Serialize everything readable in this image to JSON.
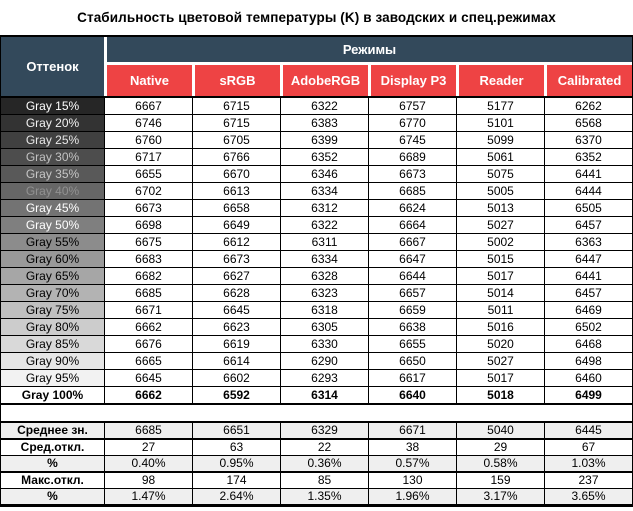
{
  "title": "Стабильность цветовой температуры (K) в заводских и спец.режимах",
  "colors": {
    "header_bg": "#33495B",
    "mode_header_bg": "#EE4344",
    "header_text": "#FFFFFF",
    "border": "#000000",
    "summary_alt_bg": "#EFEFEF"
  },
  "chart_data": {
    "type": "table",
    "title": "Стабильность цветовой температуры (K) в заводских и спец.режимах",
    "row_group_header": "Оттенок",
    "column_group_header": "Режимы",
    "columns": [
      "Native",
      "sRGB",
      "AdobeRGB",
      "Display P3",
      "Reader",
      "Calibrated"
    ],
    "rows": [
      {
        "label": "Gray 15%",
        "values": [
          6667,
          6715,
          6322,
          6757,
          5177,
          6262
        ],
        "shade_bg": "#262626",
        "shade_fg": "#FFFFFF"
      },
      {
        "label": "Gray 20%",
        "values": [
          6746,
          6715,
          6383,
          6770,
          5101,
          6568
        ],
        "shade_bg": "#333333",
        "shade_fg": "#F2F2F2"
      },
      {
        "label": "Gray 25%",
        "values": [
          6760,
          6705,
          6399,
          6745,
          5099,
          6370
        ],
        "shade_bg": "#404040",
        "shade_fg": "#E8E8E8"
      },
      {
        "label": "Gray 30%",
        "values": [
          6717,
          6766,
          6352,
          6689,
          5061,
          6352
        ],
        "shade_bg": "#4D4D4D",
        "shade_fg": "#C2C2C2"
      },
      {
        "label": "Gray 35%",
        "values": [
          6655,
          6670,
          6346,
          6673,
          5075,
          6441
        ],
        "shade_bg": "#595959",
        "shade_fg": "#C6C6C6"
      },
      {
        "label": "Gray 40%",
        "values": [
          6702,
          6613,
          6334,
          6685,
          5005,
          6444
        ],
        "shade_bg": "#666666",
        "shade_fg": "#919191"
      },
      {
        "label": "Gray 45%",
        "values": [
          6673,
          6658,
          6312,
          6624,
          5013,
          6505
        ],
        "shade_bg": "#737373",
        "shade_fg": "#FFFFFF"
      },
      {
        "label": "Gray 50%",
        "values": [
          6698,
          6649,
          6322,
          6664,
          5027,
          6457
        ],
        "shade_bg": "#7F7F7F",
        "shade_fg": "#FFFFFF"
      },
      {
        "label": "Gray 55%",
        "values": [
          6675,
          6612,
          6311,
          6667,
          5002,
          6363
        ],
        "shade_bg": "#8C8C8C",
        "shade_fg": "#000000"
      },
      {
        "label": "Gray 60%",
        "values": [
          6683,
          6673,
          6334,
          6647,
          5015,
          6447
        ],
        "shade_bg": "#999999",
        "shade_fg": "#000000"
      },
      {
        "label": "Gray 65%",
        "values": [
          6682,
          6627,
          6328,
          6644,
          5017,
          6441
        ],
        "shade_bg": "#A6A6A6",
        "shade_fg": "#000000"
      },
      {
        "label": "Gray 70%",
        "values": [
          6685,
          6628,
          6323,
          6657,
          5014,
          6457
        ],
        "shade_bg": "#B3B3B3",
        "shade_fg": "#000000"
      },
      {
        "label": "Gray 75%",
        "values": [
          6671,
          6645,
          6318,
          6659,
          5011,
          6469
        ],
        "shade_bg": "#BFBFBF",
        "shade_fg": "#000000"
      },
      {
        "label": "Gray 80%",
        "values": [
          6662,
          6623,
          6305,
          6638,
          5016,
          6502
        ],
        "shade_bg": "#CCCCCC",
        "shade_fg": "#000000"
      },
      {
        "label": "Gray 85%",
        "values": [
          6676,
          6619,
          6330,
          6655,
          5020,
          6468
        ],
        "shade_bg": "#D9D9D9",
        "shade_fg": "#000000"
      },
      {
        "label": "Gray 90%",
        "values": [
          6665,
          6614,
          6290,
          6650,
          5027,
          6498
        ],
        "shade_bg": "#E6E6E6",
        "shade_fg": "#000000"
      },
      {
        "label": "Gray 95%",
        "values": [
          6645,
          6602,
          6293,
          6617,
          5017,
          6460
        ],
        "shade_bg": "#F2F2F2",
        "shade_fg": "#000000"
      },
      {
        "label": "Gray 100%",
        "values": [
          6662,
          6592,
          6314,
          6640,
          5018,
          6499
        ],
        "shade_bg": "#FFFFFF",
        "shade_fg": "#000000",
        "bold": true
      }
    ],
    "summary_rows": [
      {
        "label": "Среднее зн.",
        "values": [
          "6685",
          "6651",
          "6329",
          "6671",
          "5040",
          "6445"
        ]
      },
      {
        "label": "Сред.откл.",
        "values": [
          "27",
          "63",
          "22",
          "38",
          "29",
          "67"
        ]
      },
      {
        "label": "%",
        "values": [
          "0.40%",
          "0.95%",
          "0.36%",
          "0.57%",
          "0.58%",
          "1.03%"
        ]
      },
      {
        "label": "Макс.откл.",
        "values": [
          "98",
          "174",
          "85",
          "130",
          "159",
          "237"
        ]
      },
      {
        "label": "%",
        "values": [
          "1.47%",
          "2.64%",
          "1.35%",
          "1.96%",
          "3.17%",
          "3.65%"
        ]
      }
    ]
  }
}
